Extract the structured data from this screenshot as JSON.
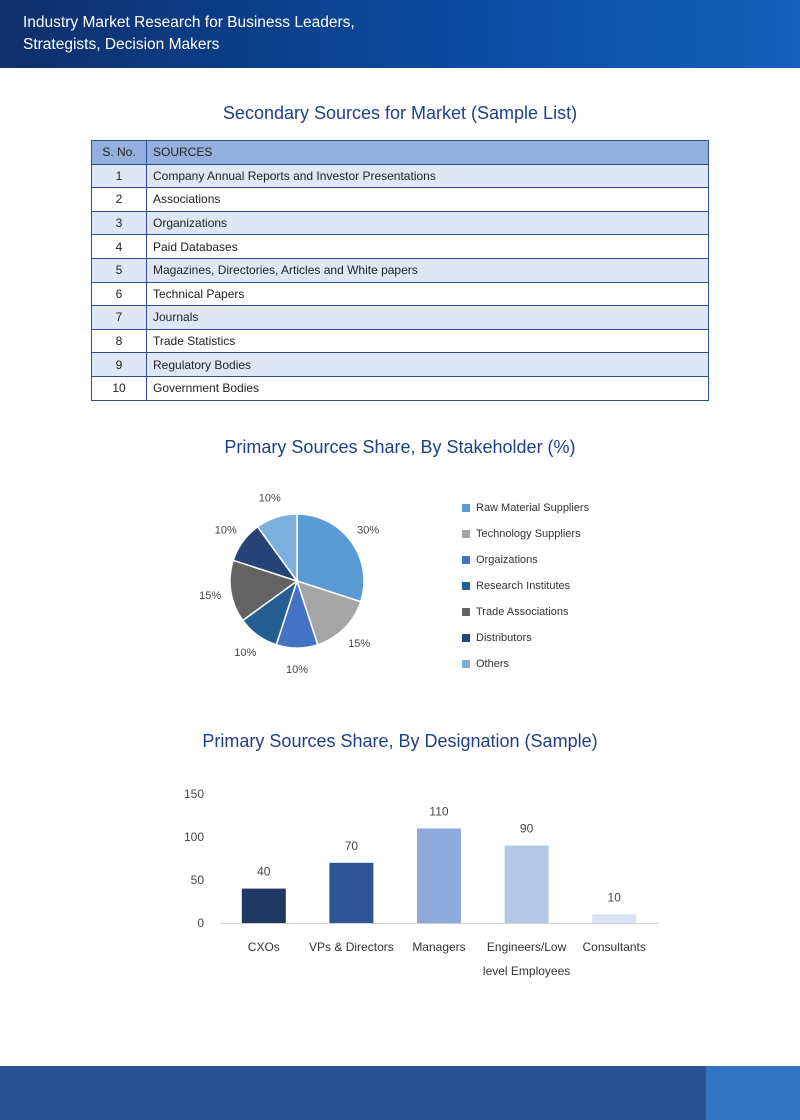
{
  "header": {
    "title_line1": "Industry Market Research for Business Leaders,",
    "title_line2": "Strategists, Decision Makers"
  },
  "secondary": {
    "title": "Secondary Sources for Market (Sample List)",
    "col_sno": "S. No.",
    "col_sources": "SOURCES",
    "rows": [
      {
        "sno": "1",
        "source": "Company Annual Reports and Investor Presentations"
      },
      {
        "sno": "2",
        "source": "Associations"
      },
      {
        "sno": "3",
        "source": "Organizations"
      },
      {
        "sno": "4",
        "source": "Paid Databases"
      },
      {
        "sno": "5",
        "source": "Magazines, Directories, Articles and White papers"
      },
      {
        "sno": "6",
        "source": "Technical Papers"
      },
      {
        "sno": "7",
        "source": "Journals"
      },
      {
        "sno": "8",
        "source": "Trade Statistics"
      },
      {
        "sno": "9",
        "source": "Regulatory Bodies"
      },
      {
        "sno": "10",
        "source": "Government Bodies"
      }
    ]
  },
  "pie_title": "Primary Sources Share, By Stakeholder (%)",
  "bar_title": "Primary Sources Share, By Designation (Sample)",
  "chart_data": [
    {
      "type": "pie",
      "title": "Primary Sources Share, By Stakeholder (%)",
      "legend_position": "right",
      "slices": [
        {
          "label": "Raw Material Suppliers",
          "value": 30,
          "color": "#5b9bd5",
          "display": "30%"
        },
        {
          "label": "Technology Suppliers",
          "value": 15,
          "color": "#a5a5a5",
          "display": "15%"
        },
        {
          "label": "Orgaizations",
          "value": 10,
          "color": "#4472c4",
          "display": "10%"
        },
        {
          "label": "Research Institutes",
          "value": 10,
          "color": "#255e91",
          "display": "10%"
        },
        {
          "label": "Trade Associations",
          "value": 15,
          "color": "#636363",
          "display": "15%"
        },
        {
          "label": "Distributors",
          "value": 10,
          "color": "#264478",
          "display": "10%"
        },
        {
          "label": "Others",
          "value": 10,
          "color": "#7cafdd",
          "display": "10%"
        }
      ]
    },
    {
      "type": "bar",
      "title": "Primary Sources Share, By Designation (Sample)",
      "categories": [
        "CXOs",
        "VPs & Directors",
        "Managers",
        "Engineers/Low level Employees",
        "Consultants"
      ],
      "category_lines": [
        [
          "CXOs"
        ],
        [
          "VPs & Directors"
        ],
        [
          "Managers"
        ],
        [
          "Engineers/Low",
          "level Employees"
        ],
        [
          "Consultants"
        ]
      ],
      "values": [
        40,
        70,
        110,
        90,
        10
      ],
      "colors": [
        "#203864",
        "#2f5597",
        "#8faadc",
        "#b4c7e7",
        "#dae3f3"
      ],
      "ylim": [
        0,
        150
      ],
      "yticks": [
        0,
        50,
        100,
        150
      ],
      "grid": false
    }
  ]
}
